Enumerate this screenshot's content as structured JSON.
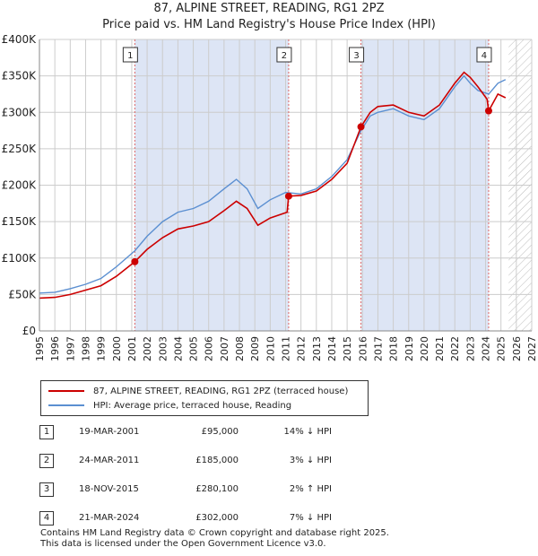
{
  "title_line1": "87, ALPINE STREET, READING, RG1 2PZ",
  "title_line2": "Price paid vs. HM Land Registry's House Price Index (HPI)",
  "legend": {
    "property_label": "87, ALPINE STREET, READING, RG1 2PZ (terraced house)",
    "hpi_label": "HPI: Average price, terraced house, Reading"
  },
  "sales": [
    {
      "num": "1",
      "date": "19-MAR-2001",
      "price": "£95,000",
      "hpi": "14% ↓ HPI"
    },
    {
      "num": "2",
      "date": "24-MAR-2011",
      "price": "£185,000",
      "hpi": "3% ↓ HPI"
    },
    {
      "num": "3",
      "date": "18-NOV-2015",
      "price": "£280,100",
      "hpi": "2% ↑ HPI"
    },
    {
      "num": "4",
      "date": "21-MAR-2024",
      "price": "£302,000",
      "hpi": "7% ↓ HPI"
    }
  ],
  "footer": {
    "line1": "Contains HM Land Registry data © Crown copyright and database right 2025.",
    "line2": "This data is licensed under the Open Government Licence v3.0."
  },
  "colors": {
    "property": "#cc0000",
    "hpi": "#5b8fd1",
    "shade": "#dde5f5",
    "grid": "#cccccc",
    "marker_line": "#dd6666"
  },
  "chart_data": {
    "type": "line",
    "xlabel": "",
    "ylabel": "",
    "xlim": [
      1995,
      2027
    ],
    "ylim": [
      0,
      400000
    ],
    "x_ticks": [
      "1995",
      "1996",
      "1997",
      "1998",
      "1999",
      "2000",
      "2001",
      "2002",
      "2003",
      "2004",
      "2005",
      "2006",
      "2007",
      "2008",
      "2009",
      "2010",
      "2011",
      "2012",
      "2013",
      "2014",
      "2015",
      "2016",
      "2017",
      "2018",
      "2019",
      "2020",
      "2021",
      "2022",
      "2023",
      "2024",
      "2025",
      "2026",
      "2027"
    ],
    "y_ticks": [
      {
        "value": 0,
        "label": "£0"
      },
      {
        "value": 50000,
        "label": "£50K"
      },
      {
        "value": 100000,
        "label": "£100K"
      },
      {
        "value": 150000,
        "label": "£150K"
      },
      {
        "value": 200000,
        "label": "£200K"
      },
      {
        "value": 250000,
        "label": "£250K"
      },
      {
        "value": 300000,
        "label": "£300K"
      },
      {
        "value": 350000,
        "label": "£350K"
      },
      {
        "value": 400000,
        "label": "£400K"
      }
    ],
    "forecast_from": 2025.5,
    "shaded_periods": [
      [
        2001.2,
        2011.2
      ],
      [
        2015.9,
        2024.2
      ]
    ],
    "series": [
      {
        "name": "HPI: Average price, terraced house, Reading",
        "points": [
          [
            1995.0,
            52000
          ],
          [
            1996.0,
            53000
          ],
          [
            1997.0,
            58000
          ],
          [
            1998.0,
            64000
          ],
          [
            1999.0,
            72000
          ],
          [
            2000.0,
            88000
          ],
          [
            2001.2,
            110000
          ],
          [
            2002.0,
            130000
          ],
          [
            2003.0,
            150000
          ],
          [
            2004.0,
            163000
          ],
          [
            2005.0,
            168000
          ],
          [
            2006.0,
            178000
          ],
          [
            2007.0,
            195000
          ],
          [
            2007.8,
            208000
          ],
          [
            2008.5,
            195000
          ],
          [
            2009.2,
            168000
          ],
          [
            2010.0,
            180000
          ],
          [
            2011.0,
            190000
          ],
          [
            2012.0,
            188000
          ],
          [
            2013.0,
            195000
          ],
          [
            2014.0,
            212000
          ],
          [
            2015.0,
            235000
          ],
          [
            2015.9,
            275000
          ],
          [
            2016.5,
            295000
          ],
          [
            2017.0,
            300000
          ],
          [
            2018.0,
            305000
          ],
          [
            2019.0,
            295000
          ],
          [
            2020.0,
            290000
          ],
          [
            2021.0,
            305000
          ],
          [
            2022.0,
            335000
          ],
          [
            2022.6,
            350000
          ],
          [
            2023.0,
            340000
          ],
          [
            2023.5,
            330000
          ],
          [
            2024.2,
            325000
          ],
          [
            2024.8,
            340000
          ],
          [
            2025.3,
            345000
          ]
        ]
      },
      {
        "name": "87, ALPINE STREET, READING, RG1 2PZ (terraced house)",
        "points": [
          [
            1995.0,
            45000
          ],
          [
            1996.0,
            46000
          ],
          [
            1997.0,
            50000
          ],
          [
            1998.0,
            56000
          ],
          [
            1999.0,
            62000
          ],
          [
            2000.0,
            75000
          ],
          [
            2001.2,
            95000
          ],
          [
            2002.0,
            112000
          ],
          [
            2003.0,
            128000
          ],
          [
            2004.0,
            140000
          ],
          [
            2005.0,
            144000
          ],
          [
            2006.0,
            150000
          ],
          [
            2007.0,
            165000
          ],
          [
            2007.8,
            178000
          ],
          [
            2008.5,
            168000
          ],
          [
            2009.2,
            145000
          ],
          [
            2010.0,
            155000
          ],
          [
            2011.1,
            163000
          ],
          [
            2011.2,
            185000
          ],
          [
            2012.0,
            186000
          ],
          [
            2013.0,
            192000
          ],
          [
            2014.0,
            208000
          ],
          [
            2015.0,
            230000
          ],
          [
            2015.9,
            280100
          ],
          [
            2016.5,
            300000
          ],
          [
            2017.0,
            308000
          ],
          [
            2018.0,
            310000
          ],
          [
            2019.0,
            300000
          ],
          [
            2020.0,
            295000
          ],
          [
            2021.0,
            310000
          ],
          [
            2022.0,
            340000
          ],
          [
            2022.6,
            355000
          ],
          [
            2023.0,
            348000
          ],
          [
            2023.5,
            335000
          ],
          [
            2024.1,
            318000
          ],
          [
            2024.2,
            302000
          ],
          [
            2024.8,
            325000
          ],
          [
            2025.3,
            320000
          ]
        ]
      }
    ],
    "sale_markers": [
      {
        "num": "1",
        "x": 2001.2,
        "y": 95000
      },
      {
        "num": "2",
        "x": 2011.2,
        "y": 185000
      },
      {
        "num": "3",
        "x": 2015.9,
        "y": 280100
      },
      {
        "num": "4",
        "x": 2024.2,
        "y": 302000
      }
    ]
  }
}
